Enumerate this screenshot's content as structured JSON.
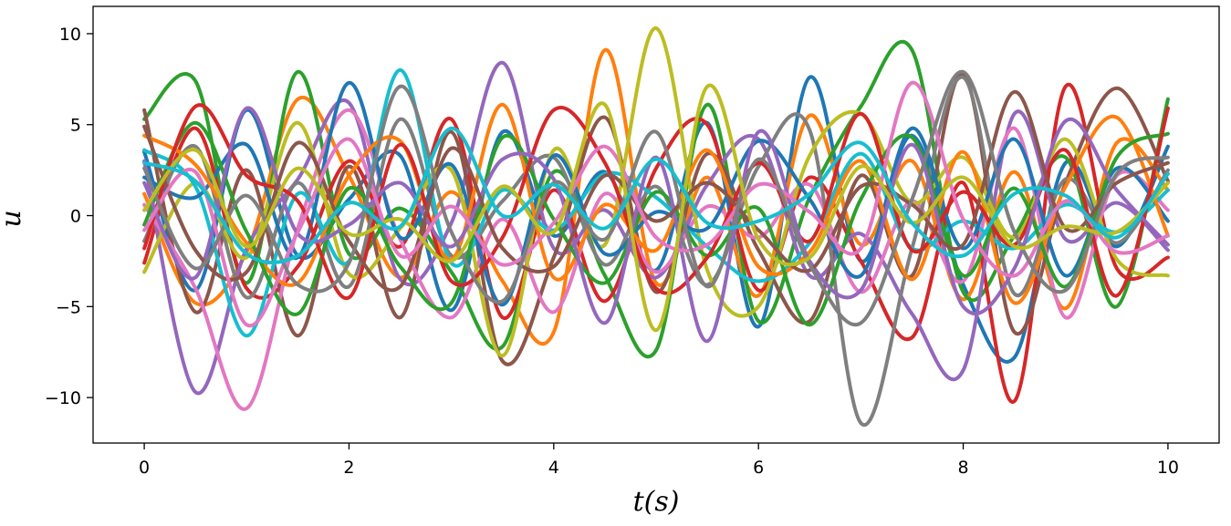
{
  "chart_data": {
    "type": "line",
    "title": "",
    "xlabel": "t(s)",
    "ylabel": "u",
    "xlim": [
      -0.5,
      10.5
    ],
    "ylim": [
      -12.5,
      11.5
    ],
    "xticks": [
      0,
      2,
      4,
      6,
      8,
      10
    ],
    "yticks": [
      -10,
      -5,
      0,
      5,
      10
    ],
    "xtick_labels": [
      "0",
      "2",
      "4",
      "6",
      "8",
      "10"
    ],
    "ytick_labels": [
      "−10",
      "−5",
      "0",
      "5",
      "10"
    ],
    "grid": false,
    "legend": "none",
    "colors": [
      "#1f77b4",
      "#ff7f0e",
      "#2ca02c",
      "#d62728",
      "#9467bd",
      "#8c564b",
      "#e377c2",
      "#7f7f7f",
      "#bcbd22",
      "#17becf"
    ],
    "series": [
      {
        "x": [
          0,
          0.5,
          1,
          1.5,
          2,
          2.5,
          3,
          3.5,
          4,
          4.5,
          5,
          5.5,
          6,
          6.5,
          7,
          7.5,
          8,
          8.5,
          9,
          9.5,
          10
        ],
        "values": [
          3.5,
          -4.1,
          5.8,
          -2.2,
          0.9,
          3.3,
          -5.2,
          4.6,
          -1.1,
          2.4,
          -3.0,
          5.1,
          -6.1,
          7.6,
          -2.5,
          4.4,
          -3.8,
          -7.8,
          2.9,
          -1.7,
          3.8
        ]
      },
      {
        "x": [
          0,
          0.5,
          1,
          1.5,
          2,
          2.5,
          3,
          3.5,
          4,
          4.5,
          5,
          5.5,
          6,
          6.5,
          7,
          7.5,
          8,
          8.5,
          9,
          9.5,
          10
        ],
        "values": [
          1.2,
          -4.8,
          -2.0,
          6.4,
          2.2,
          -3.4,
          1.3,
          -3.6,
          -6.4,
          9.1,
          -3.7,
          2.1,
          -4.4,
          5.5,
          -1.6,
          3.0,
          -4.6,
          2.4,
          -5.1,
          4.0,
          1.4
        ]
      },
      {
        "x": [
          0,
          0.5,
          1,
          1.5,
          2,
          2.5,
          3,
          3.5,
          4,
          4.5,
          5,
          5.5,
          6,
          6.5,
          7,
          7.5,
          8,
          8.5,
          9,
          9.5,
          10
        ],
        "values": [
          5.3,
          7.4,
          -3.7,
          7.9,
          -2.1,
          0.4,
          -3.1,
          -7.2,
          2.4,
          -3.3,
          -7.4,
          6.1,
          -5.8,
          1.0,
          6.0,
          9.1,
          -4.2,
          -1.1,
          3.2,
          -5.0,
          6.4
        ]
      },
      {
        "x": [
          0,
          0.5,
          1,
          1.5,
          2,
          2.5,
          3,
          3.5,
          4,
          4.5,
          5,
          5.5,
          6,
          6.5,
          7,
          7.5,
          8,
          8.5,
          9,
          9.5,
          10
        ],
        "values": [
          -2.6,
          4.8,
          -4.0,
          -2.8,
          3.0,
          -1.7,
          5.3,
          -5.6,
          1.4,
          -4.7,
          2.6,
          5.0,
          -4.1,
          2.1,
          -2.5,
          -6.7,
          1.8,
          -10.2,
          7.1,
          -2.9,
          -2.3
        ]
      },
      {
        "x": [
          0,
          0.5,
          1,
          1.5,
          2,
          2.5,
          3,
          3.5,
          4,
          4.5,
          5,
          5.5,
          6,
          6.5,
          7,
          7.5,
          8,
          8.5,
          9,
          9.5,
          10
        ],
        "values": [
          3.0,
          -9.7,
          -1.8,
          2.0,
          6.2,
          -3.5,
          -0.4,
          8.4,
          -1.8,
          0.3,
          -3.4,
          1.7,
          4.2,
          -3.3,
          -1.0,
          -5.4,
          -8.5,
          5.6,
          -1.3,
          0.7,
          -1.9
        ]
      },
      {
        "x": [
          0,
          0.5,
          1,
          1.5,
          2,
          2.5,
          3,
          3.5,
          4,
          4.5,
          5,
          5.5,
          6,
          6.5,
          7,
          7.5,
          8,
          8.5,
          9,
          9.5,
          10
        ],
        "values": [
          5.8,
          -5.3,
          2.5,
          -6.6,
          2.7,
          -5.6,
          4.6,
          -8.0,
          -2.3,
          5.4,
          -4.2,
          3.4,
          -1.9,
          -5.8,
          2.2,
          -3.3,
          7.8,
          -6.4,
          1.8,
          7.0,
          1.9
        ]
      },
      {
        "x": [
          0,
          0.5,
          1,
          1.5,
          2,
          2.5,
          3,
          3.5,
          4,
          4.5,
          5,
          5.5,
          6,
          6.5,
          7,
          7.5,
          8,
          8.5,
          9,
          9.5,
          10
        ],
        "values": [
          0.6,
          -4.0,
          -10.6,
          -0.7,
          5.8,
          -1.3,
          -5.6,
          -0.2,
          -5.3,
          1.2,
          -3.1,
          0.5,
          -1.2,
          1.7,
          -4.2,
          0.8,
          -3.6,
          4.8,
          -5.6,
          2.2,
          0.3
        ]
      },
      {
        "x": [
          0,
          0.5,
          1,
          1.5,
          2,
          2.5,
          3,
          3.5,
          4,
          4.5,
          5,
          5.5,
          6,
          6.5,
          7,
          7.5,
          8,
          8.5,
          9,
          9.5,
          10
        ],
        "values": [
          -1.4,
          3.8,
          -4.5,
          1.8,
          -3.9,
          5.3,
          -2.2,
          0.8,
          3.2,
          -2.7,
          1.6,
          -3.8,
          2.7,
          4.7,
          -11.4,
          -1.8,
          7.6,
          -4.3,
          2.0,
          -1.5,
          2.5
        ]
      },
      {
        "x": [
          0,
          0.5,
          1,
          1.5,
          2,
          2.5,
          3,
          3.5,
          4,
          4.5,
          5,
          5.5,
          6,
          6.5,
          7,
          7.5,
          8,
          8.5,
          9,
          9.5,
          10
        ],
        "values": [
          -3.1,
          1.8,
          -2.3,
          5.1,
          -3.2,
          -0.7,
          2.5,
          -7.7,
          3.6,
          -1.6,
          10.3,
          -3.0,
          -5.0,
          3.3,
          5.6,
          0.7,
          3.2,
          -1.2,
          4.2,
          -2.4,
          -3.3
        ]
      },
      {
        "x": [
          0,
          0.5,
          1,
          1.5,
          2,
          2.5,
          3,
          3.5,
          4,
          4.5,
          5,
          5.5,
          6,
          6.5,
          7,
          7.5,
          8,
          8.5,
          9,
          9.5,
          10
        ],
        "values": [
          3.6,
          1.6,
          -6.6,
          1.2,
          -2.5,
          8.0,
          -2.6,
          1.4,
          -0.8,
          2.3,
          1.0,
          -1.7,
          -3.6,
          -1.5,
          3.4,
          -1.8,
          -0.3,
          -1.8,
          0.6,
          -0.9,
          1.4
        ]
      },
      {
        "x": [
          0,
          0.5,
          1,
          1.5,
          2,
          2.5,
          3,
          3.5,
          4,
          4.5,
          5,
          5.5,
          6,
          6.5,
          7,
          7.5,
          8,
          8.5,
          9,
          9.5,
          10
        ],
        "values": [
          2.1,
          1.0,
          3.9,
          -2.3,
          7.3,
          -1.2,
          2.8,
          -4.9,
          3.3,
          -2.1,
          0.2,
          -0.7,
          4.1,
          0.9,
          -3.3,
          4.8,
          -1.8,
          4.2,
          -3.3,
          2.6,
          -0.3
        ]
      },
      {
        "x": [
          0,
          0.5,
          1,
          1.5,
          2,
          2.5,
          3,
          3.5,
          4,
          4.5,
          5,
          5.5,
          6,
          6.5,
          7,
          7.5,
          8,
          8.5,
          9,
          9.5,
          10
        ],
        "values": [
          4.4,
          2.8,
          -1.5,
          -3.7,
          2.2,
          4.1,
          -2.4,
          6.1,
          -3.4,
          0.6,
          -1.9,
          3.6,
          -2.8,
          -2.0,
          3.0,
          -3.5,
          3.5,
          -4.8,
          1.6,
          5.4,
          -1.1
        ]
      },
      {
        "x": [
          0,
          0.5,
          1,
          1.5,
          2,
          2.5,
          3,
          3.5,
          4,
          4.5,
          5,
          5.5,
          6,
          6.5,
          7,
          7.5,
          8,
          8.5,
          9,
          9.5,
          10
        ],
        "values": [
          -0.5,
          5.1,
          -0.9,
          -5.4,
          1.5,
          -2.8,
          -4.8,
          4.3,
          -0.2,
          -3.7,
          1.3,
          -2.2,
          0.4,
          -6.0,
          0.9,
          4.3,
          -3.3,
          1.5,
          -3.9,
          3.2,
          4.5
        ]
      },
      {
        "x": [
          0,
          0.5,
          1,
          1.5,
          2,
          2.5,
          3,
          3.5,
          4,
          4.5,
          5,
          5.5,
          6,
          6.5,
          7,
          7.5,
          8,
          8.5,
          9,
          9.5,
          10
        ],
        "values": [
          -1.8,
          6.0,
          2.2,
          0.8,
          -4.5,
          3.9,
          -3.6,
          -1.2,
          5.8,
          2.9,
          -4.0,
          -2.3,
          2.9,
          -1.4,
          5.6,
          -1.9,
          1.3,
          -1.6,
          3.6,
          -4.4,
          5.9
        ]
      },
      {
        "x": [
          0,
          0.5,
          1,
          1.5,
          2,
          2.5,
          3,
          3.5,
          4,
          4.5,
          5,
          5.5,
          6,
          6.5,
          7,
          7.5,
          8,
          8.5,
          9,
          9.5,
          10
        ],
        "values": [
          1.8,
          -3.4,
          5.9,
          -1.0,
          -0.5,
          1.8,
          -1.7,
          3.1,
          2.0,
          -5.9,
          3.2,
          -6.9,
          4.6,
          -2.5,
          -4.1,
          3.9,
          -5.0,
          -2.9,
          5.2,
          1.4,
          -1.6
        ]
      },
      {
        "x": [
          0,
          0.5,
          1,
          1.5,
          2,
          2.5,
          3,
          3.5,
          4,
          4.5,
          5,
          5.5,
          6,
          6.5,
          7,
          7.5,
          8,
          8.5,
          9,
          9.5,
          10
        ],
        "values": [
          4.9,
          -1.9,
          -3.1,
          4.0,
          -1.4,
          -3.9,
          3.7,
          -1.8,
          -2.8,
          2.2,
          -0.3,
          1.8,
          -0.8,
          -3.0,
          1.6,
          0.6,
          -1.6,
          6.8,
          -0.7,
          1.8,
          2.9
        ]
      },
      {
        "x": [
          0,
          0.5,
          1,
          1.5,
          2,
          2.5,
          3,
          3.5,
          4,
          4.5,
          5,
          5.5,
          6,
          6.5,
          7,
          7.5,
          8,
          8.5,
          9,
          9.5,
          10
        ],
        "values": [
          -0.8,
          2.4,
          -6.0,
          -0.9,
          4.2,
          -2.2,
          0.5,
          -2.7,
          -0.4,
          3.8,
          -1.2,
          -1.6,
          1.7,
          0.2,
          -1.8,
          7.3,
          -0.2,
          -3.3,
          0.8,
          -2.0,
          -1.1
        ]
      },
      {
        "x": [
          0,
          0.5,
          1,
          1.5,
          2,
          2.5,
          3,
          3.5,
          4,
          4.5,
          5,
          5.5,
          6,
          6.5,
          7,
          7.5,
          8,
          8.5,
          9,
          9.5,
          10
        ],
        "values": [
          2.6,
          -2.9,
          1.1,
          -3.8,
          -2.6,
          7.1,
          -0.9,
          -4.7,
          1.8,
          -1.3,
          4.6,
          -3.9,
          3.1,
          -2.7,
          -5.9,
          0.9,
          7.9,
          -0.9,
          -4.1,
          2.3,
          3.2
        ]
      },
      {
        "x": [
          0,
          0.5,
          1,
          1.5,
          2,
          2.5,
          3,
          3.5,
          4,
          4.5,
          5,
          5.5,
          6,
          6.5,
          7,
          7.5,
          8,
          8.5,
          9,
          9.5,
          10
        ],
        "values": [
          0.3,
          3.6,
          -1.7,
          2.6,
          -1.0,
          -0.2,
          -2.5,
          1.6,
          -0.9,
          6.1,
          -6.3,
          7.1,
          -1.3,
          -2.3,
          2.7,
          -0.4,
          2.1,
          -1.7,
          -0.6,
          -0.9,
          1.8
        ]
      },
      {
        "x": [
          0,
          0.5,
          1,
          1.5,
          2,
          2.5,
          3,
          3.5,
          4,
          4.5,
          5,
          5.5,
          6,
          6.5,
          7,
          7.5,
          8,
          8.5,
          9,
          9.5,
          10
        ],
        "values": [
          2.9,
          1.9,
          -2.1,
          -2.2,
          0.7,
          -0.6,
          4.8,
          0.0,
          1.7,
          -0.7,
          3.1,
          -0.4,
          -0.3,
          1.2,
          4.0,
          -0.4,
          -2.2,
          1.2,
          1.1,
          -1.2,
          2.3
        ]
      }
    ]
  }
}
